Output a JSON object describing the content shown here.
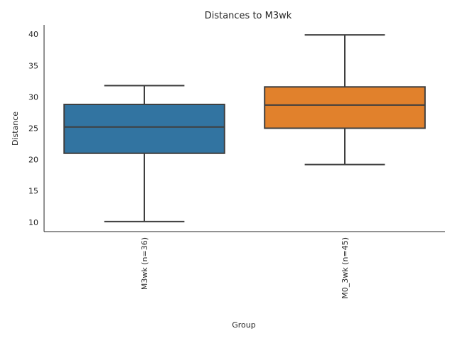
{
  "chart_data": {
    "type": "box",
    "title": "Distances to M3wk",
    "xlabel": "Group",
    "ylabel": "Distance",
    "yticks": [
      10,
      15,
      20,
      25,
      30,
      35,
      40
    ],
    "ylim": [
      8.5,
      41.5
    ],
    "grid": false,
    "categories": [
      "M3wk (n=36)",
      "M0_3wk (n=45)"
    ],
    "boxes": [
      {
        "whislo": 10.1,
        "q1": 21.0,
        "median": 25.2,
        "q3": 28.8,
        "whishi": 31.8,
        "color": "#3274a1"
      },
      {
        "whislo": 19.2,
        "q1": 25.0,
        "median": 28.7,
        "q3": 31.6,
        "whishi": 39.9,
        "color": "#e1812c"
      }
    ]
  }
}
